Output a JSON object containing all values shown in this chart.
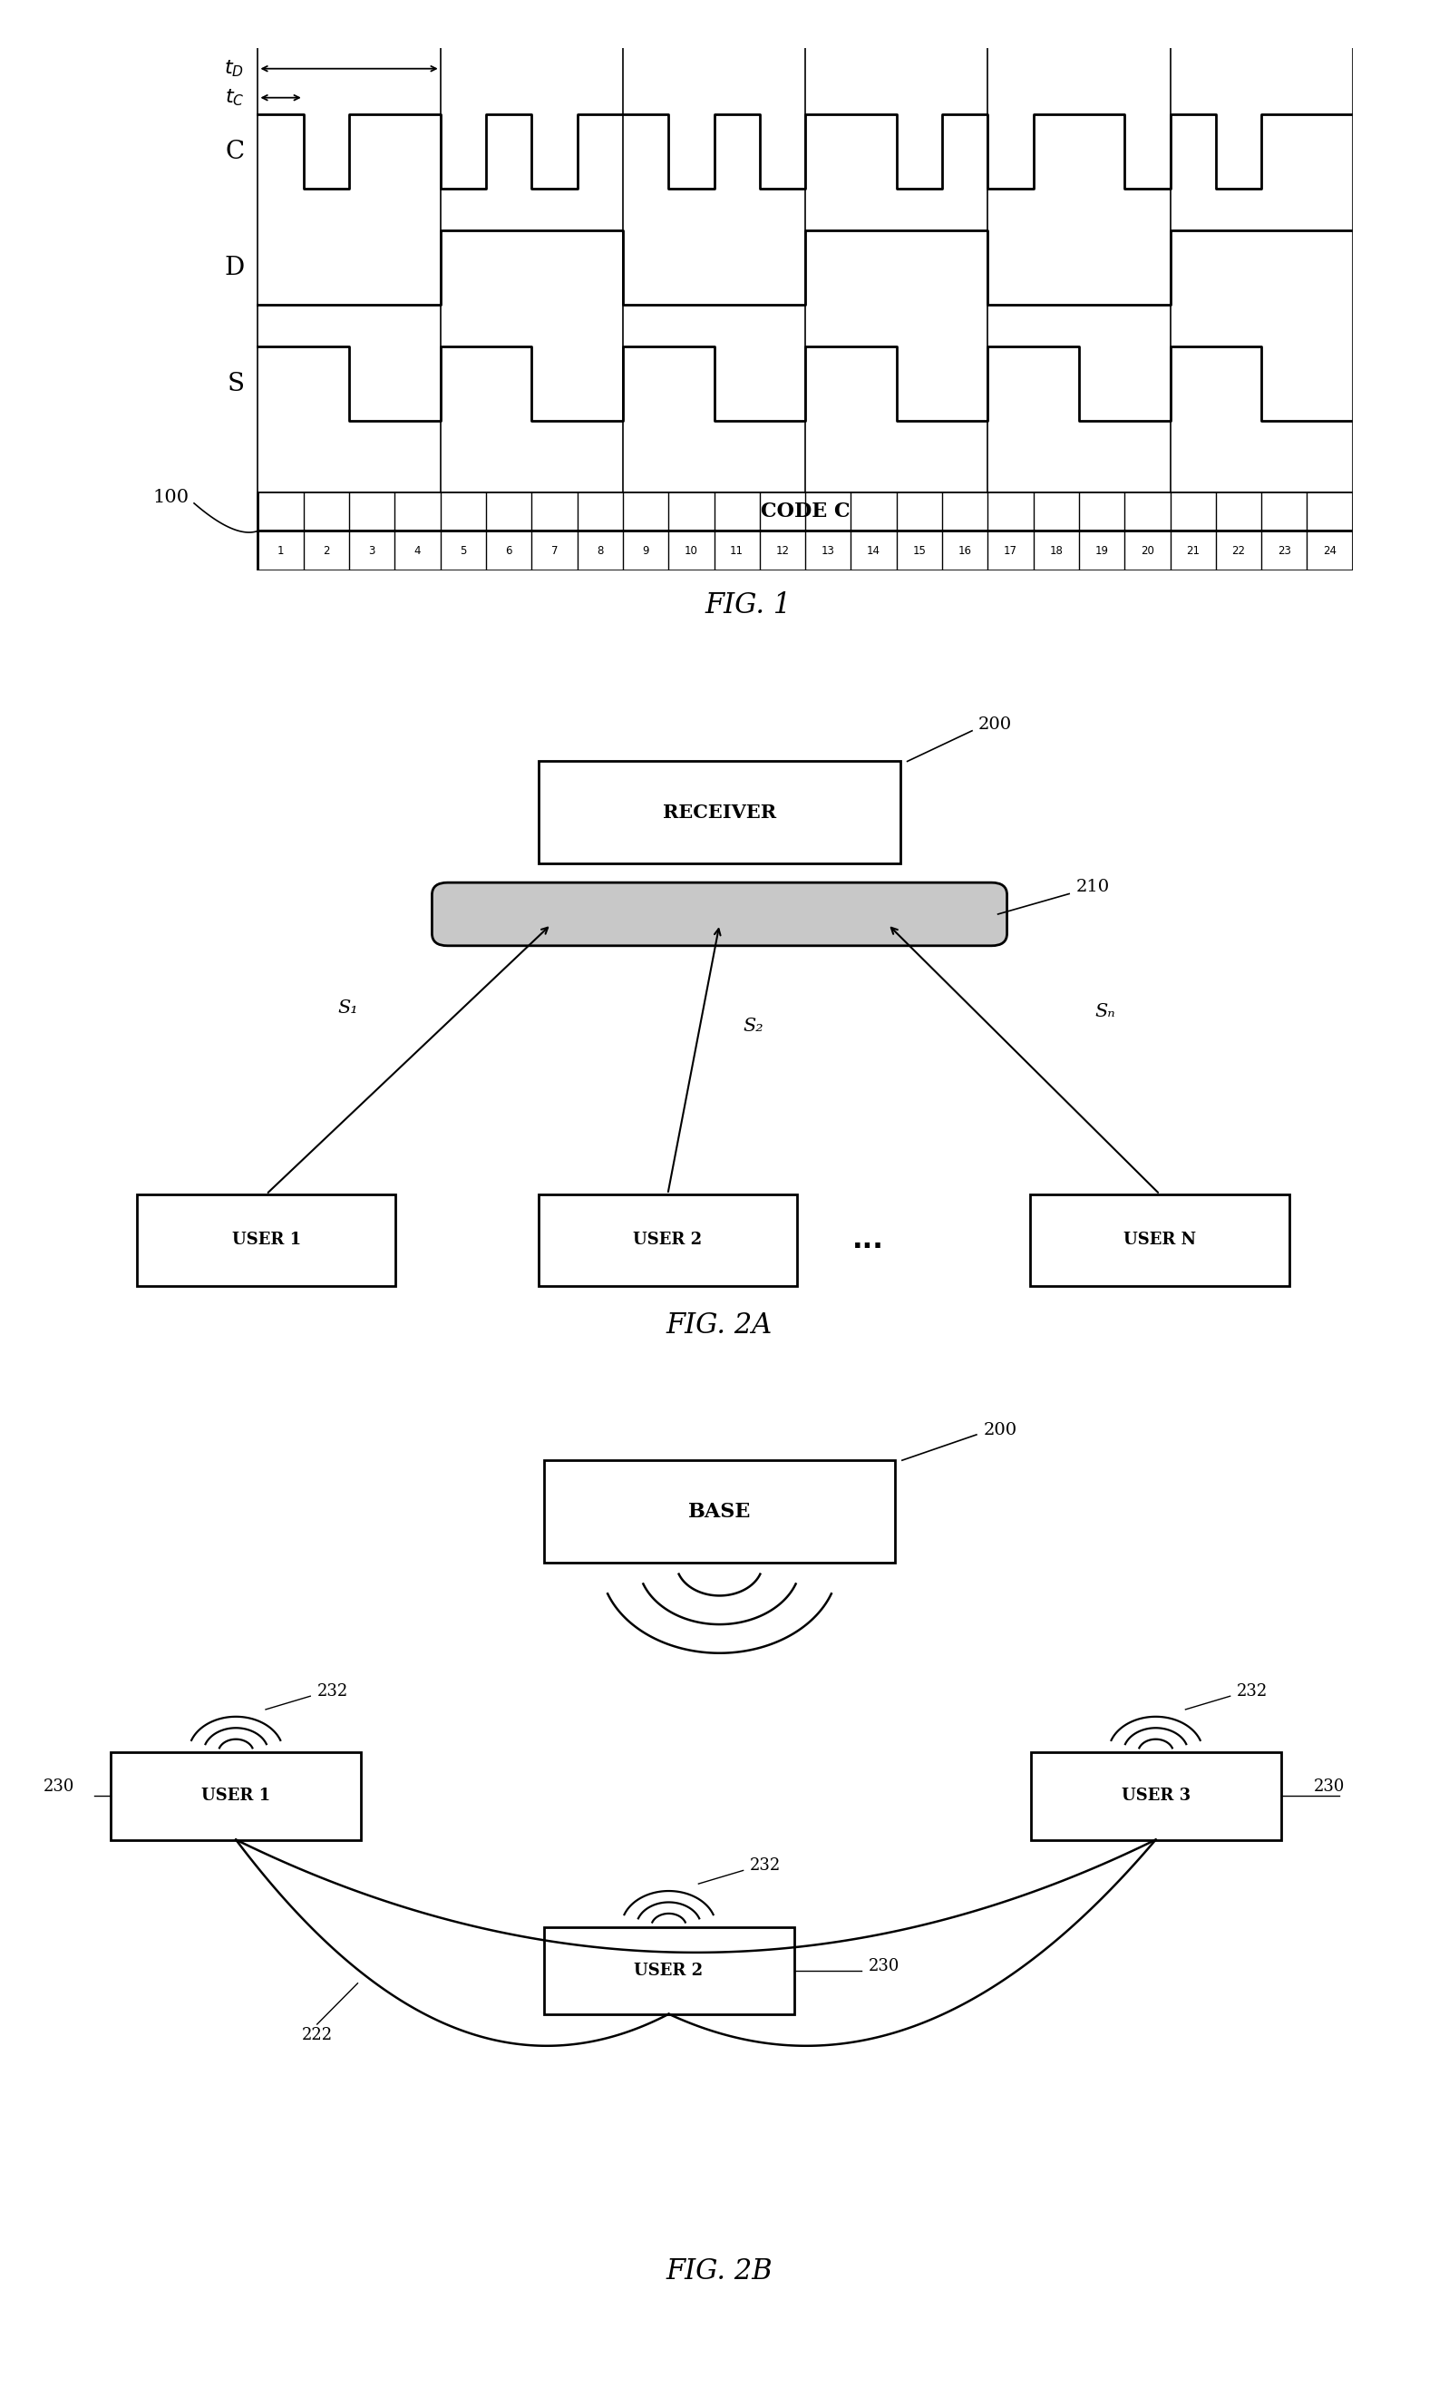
{
  "fig_width": 15.87,
  "fig_height": 26.43,
  "bg_color": "#ffffff",
  "fig1": {
    "title": "FIG. 1",
    "C_bits": [
      1,
      0,
      1,
      1,
      0,
      1,
      0,
      1,
      1,
      0,
      1,
      0,
      1,
      1,
      0,
      1,
      0,
      1,
      1,
      0,
      1,
      0,
      1,
      1
    ],
    "D_bits": [
      0,
      0,
      0,
      0,
      1,
      1,
      1,
      1,
      0,
      0,
      0,
      0,
      1,
      1,
      1,
      1,
      0,
      0,
      0,
      0,
      1,
      1,
      1,
      1
    ],
    "S_bits": [
      1,
      1,
      0,
      0,
      1,
      1,
      0,
      0,
      1,
      1,
      0,
      0,
      1,
      1,
      0,
      0,
      1,
      1,
      0,
      0,
      1,
      1,
      0,
      0
    ],
    "chips": 24,
    "dividers": [
      0,
      4,
      8,
      12,
      16,
      20,
      24
    ],
    "tD_span": [
      0,
      4
    ],
    "tC_span": [
      0,
      1
    ]
  },
  "fig2a": {
    "title": "FIG. 2A",
    "receiver_label": "RECEIVER",
    "antenna_ref": "210",
    "receiver_ref": "200",
    "users": [
      "USER 1",
      "USER 2",
      "USER N"
    ],
    "signal_labels": [
      "S₁",
      "S₂",
      "Sₙ"
    ],
    "dots": "..."
  },
  "fig2b": {
    "title": "FIG. 2B",
    "base_label": "BASE",
    "base_ref": "200",
    "users": [
      "USER 1",
      "USER 2",
      "USER 3"
    ],
    "user_ref": "230",
    "antenna_ref": "232",
    "arc_ref": "222"
  }
}
